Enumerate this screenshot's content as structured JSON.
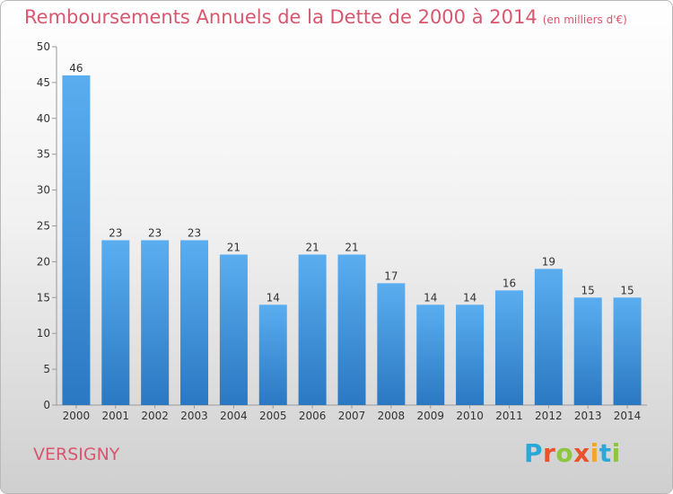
{
  "page": {
    "title": "Remboursements Annuels de la Dette de 2000 à 2014",
    "unit_note": "(en milliers d'€)",
    "commune": "VERSIGNY",
    "logo": {
      "letters": [
        "P",
        "r",
        "o",
        "x",
        "i",
        "t",
        "i"
      ],
      "colors": [
        "#2aa8d8",
        "#e9532b",
        "#8dc63f",
        "#e9532b",
        "#f4a62a",
        "#2aa8d8",
        "#8dc63f"
      ]
    },
    "colors": {
      "title": "#d9576e",
      "bar_top": "#5aaef0",
      "bar_bottom": "#2a78c2"
    }
  },
  "chart_data": {
    "type": "bar",
    "title": "Remboursements Annuels de la Dette de 2000 à 2014",
    "subtitle": "(en milliers d'€)",
    "xlabel": "",
    "ylabel": "",
    "categories": [
      "2000",
      "2001",
      "2002",
      "2003",
      "2004",
      "2005",
      "2006",
      "2007",
      "2008",
      "2009",
      "2010",
      "2011",
      "2012",
      "2013",
      "2014"
    ],
    "values": [
      46,
      23,
      23,
      23,
      21,
      14,
      21,
      21,
      17,
      14,
      14,
      16,
      19,
      15,
      15
    ],
    "ylim": [
      0,
      50
    ],
    "yticks": [
      0,
      5,
      10,
      15,
      20,
      25,
      30,
      35,
      40,
      45,
      50
    ],
    "grid": false,
    "data_labels": true
  }
}
